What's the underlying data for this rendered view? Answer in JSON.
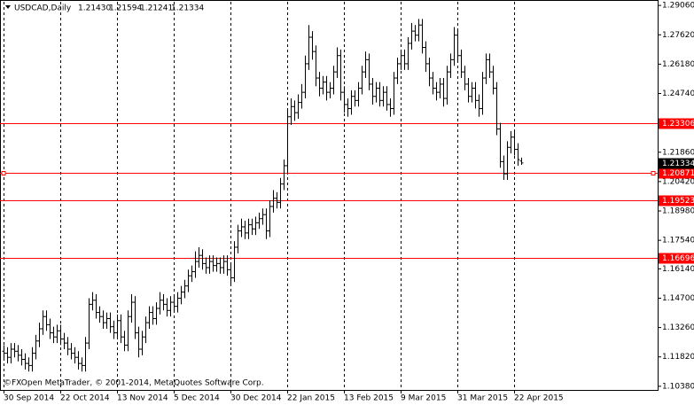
{
  "chart_data": {
    "type": "ohlc",
    "title": "USDCAD,Daily",
    "last_bar_labels": [
      "1.21430",
      "1.21594",
      "1.21241",
      "1.21334"
    ],
    "footer": "©FXOpen MetaTrader, © 2001-2014, MetaQuotes Software Corp.",
    "color": "#000000",
    "categories": [
      "30 Sep 2014",
      null,
      null,
      null,
      null,
      null,
      null,
      null,
      null,
      null,
      null,
      null,
      null,
      null,
      null,
      null,
      "22 Oct 2014",
      null,
      null,
      null,
      null,
      null,
      null,
      null,
      null,
      null,
      null,
      null,
      null,
      null,
      null,
      null,
      "13 Nov 2014",
      null,
      null,
      null,
      null,
      null,
      null,
      null,
      null,
      null,
      null,
      null,
      null,
      null,
      null,
      null,
      "5 Dec 2014",
      null,
      null,
      null,
      null,
      null,
      null,
      null,
      null,
      null,
      null,
      null,
      null,
      null,
      null,
      null,
      "30 Dec 2014",
      null,
      null,
      null,
      null,
      null,
      null,
      null,
      null,
      null,
      null,
      null,
      null,
      null,
      null,
      null,
      "22 Jan 2015",
      null,
      null,
      null,
      null,
      null,
      null,
      null,
      null,
      null,
      null,
      null,
      null,
      null,
      null,
      null,
      "13 Feb 2015",
      null,
      null,
      null,
      null,
      null,
      null,
      null,
      null,
      null,
      null,
      null,
      null,
      null,
      null,
      null,
      "9 Mar 2015",
      null,
      null,
      null,
      null,
      null,
      null,
      null,
      null,
      null,
      null,
      null,
      null,
      null,
      null,
      null,
      "31 Mar 2015",
      null,
      null,
      null,
      null,
      null,
      null,
      null,
      null,
      null,
      null,
      null,
      null,
      null,
      null,
      null,
      "22 Apr 2015",
      null,
      null
    ],
    "ohlc": [
      [
        1.121,
        1.124,
        1.117,
        1.12
      ],
      [
        1.12,
        1.123,
        1.115,
        1.118
      ],
      [
        1.118,
        1.125,
        1.115,
        1.122
      ],
      [
        1.122,
        1.125,
        1.118,
        1.121
      ],
      [
        1.121,
        1.124,
        1.116,
        1.119
      ],
      [
        1.119,
        1.122,
        1.114,
        1.117
      ],
      [
        1.117,
        1.12,
        1.112,
        1.115
      ],
      [
        1.115,
        1.118,
        1.111,
        1.114
      ],
      [
        1.114,
        1.123,
        1.111,
        1.12
      ],
      [
        1.12,
        1.129,
        1.117,
        1.126
      ],
      [
        1.126,
        1.135,
        1.123,
        1.132
      ],
      [
        1.132,
        1.141,
        1.129,
        1.138
      ],
      [
        1.138,
        1.141,
        1.131,
        1.134
      ],
      [
        1.134,
        1.137,
        1.127,
        1.13
      ],
      [
        1.13,
        1.133,
        1.125,
        1.128
      ],
      [
        1.128,
        1.134,
        1.125,
        1.131
      ],
      [
        1.131,
        1.134,
        1.124,
        1.127
      ],
      [
        1.127,
        1.13,
        1.122,
        1.125
      ],
      [
        1.125,
        1.128,
        1.119,
        1.122
      ],
      [
        1.122,
        1.125,
        1.117,
        1.12
      ],
      [
        1.12,
        1.123,
        1.115,
        1.118
      ],
      [
        1.118,
        1.121,
        1.112,
        1.115
      ],
      [
        1.115,
        1.118,
        1.111,
        1.114
      ],
      [
        1.114,
        1.128,
        1.111,
        1.125
      ],
      [
        1.125,
        1.147,
        1.122,
        1.144
      ],
      [
        1.144,
        1.15,
        1.141,
        1.146
      ],
      [
        1.146,
        1.149,
        1.137,
        1.14
      ],
      [
        1.14,
        1.143,
        1.135,
        1.138
      ],
      [
        1.138,
        1.141,
        1.132,
        1.135
      ],
      [
        1.135,
        1.14,
        1.132,
        1.137
      ],
      [
        1.137,
        1.14,
        1.13,
        1.133
      ],
      [
        1.133,
        1.136,
        1.127,
        1.13
      ],
      [
        1.13,
        1.139,
        1.127,
        1.136
      ],
      [
        1.136,
        1.139,
        1.125,
        1.128
      ],
      [
        1.128,
        1.131,
        1.121,
        1.124
      ],
      [
        1.124,
        1.141,
        1.121,
        1.138
      ],
      [
        1.138,
        1.149,
        1.135,
        1.145
      ],
      [
        1.145,
        1.148,
        1.127,
        1.13
      ],
      [
        1.13,
        1.133,
        1.118,
        1.122
      ],
      [
        1.122,
        1.131,
        1.119,
        1.128
      ],
      [
        1.128,
        1.138,
        1.125,
        1.135
      ],
      [
        1.135,
        1.143,
        1.132,
        1.14
      ],
      [
        1.14,
        1.143,
        1.134,
        1.137
      ],
      [
        1.137,
        1.145,
        1.134,
        1.142
      ],
      [
        1.142,
        1.15,
        1.139,
        1.146
      ],
      [
        1.146,
        1.149,
        1.141,
        1.144
      ],
      [
        1.144,
        1.147,
        1.138,
        1.141
      ],
      [
        1.141,
        1.148,
        1.138,
        1.145
      ],
      [
        1.145,
        1.148,
        1.14,
        1.143
      ],
      [
        1.143,
        1.15,
        1.14,
        1.147
      ],
      [
        1.147,
        1.153,
        1.144,
        1.15
      ],
      [
        1.15,
        1.156,
        1.147,
        1.153
      ],
      [
        1.153,
        1.161,
        1.15,
        1.158
      ],
      [
        1.158,
        1.163,
        1.155,
        1.16
      ],
      [
        1.16,
        1.17,
        1.157,
        1.165
      ],
      [
        1.165,
        1.172,
        1.162,
        1.168
      ],
      [
        1.168,
        1.171,
        1.161,
        1.164
      ],
      [
        1.164,
        1.167,
        1.159,
        1.162
      ],
      [
        1.162,
        1.168,
        1.159,
        1.165
      ],
      [
        1.165,
        1.168,
        1.16,
        1.163
      ],
      [
        1.163,
        1.167,
        1.16,
        1.164
      ],
      [
        1.164,
        1.167,
        1.159,
        1.162
      ],
      [
        1.162,
        1.168,
        1.159,
        1.165
      ],
      [
        1.165,
        1.168,
        1.158,
        1.161
      ],
      [
        1.161,
        1.164,
        1.154,
        1.157
      ],
      [
        1.157,
        1.175,
        1.155,
        1.172
      ],
      [
        1.172,
        1.183,
        1.169,
        1.18
      ],
      [
        1.18,
        1.186,
        1.177,
        1.182
      ],
      [
        1.182,
        1.185,
        1.176,
        1.179
      ],
      [
        1.179,
        1.186,
        1.176,
        1.183
      ],
      [
        1.183,
        1.186,
        1.178,
        1.181
      ],
      [
        1.181,
        1.187,
        1.178,
        1.184
      ],
      [
        1.184,
        1.189,
        1.181,
        1.186
      ],
      [
        1.186,
        1.191,
        1.183,
        1.188
      ],
      [
        1.188,
        1.191,
        1.176,
        1.18
      ],
      [
        1.18,
        1.195,
        1.177,
        1.192
      ],
      [
        1.192,
        1.2,
        1.189,
        1.196
      ],
      [
        1.196,
        1.199,
        1.191,
        1.194
      ],
      [
        1.194,
        1.206,
        1.191,
        1.203
      ],
      [
        1.203,
        1.215,
        1.2,
        1.212
      ],
      [
        1.212,
        1.239,
        1.209,
        1.236
      ],
      [
        1.236,
        1.245,
        1.232,
        1.241
      ],
      [
        1.241,
        1.244,
        1.234,
        1.238
      ],
      [
        1.238,
        1.247,
        1.235,
        1.243
      ],
      [
        1.243,
        1.252,
        1.24,
        1.248
      ],
      [
        1.248,
        1.266,
        1.245,
        1.262
      ],
      [
        1.262,
        1.281,
        1.259,
        1.275
      ],
      [
        1.275,
        1.278,
        1.264,
        1.268
      ],
      [
        1.268,
        1.271,
        1.251,
        1.255
      ],
      [
        1.255,
        1.258,
        1.246,
        1.25
      ],
      [
        1.25,
        1.256,
        1.247,
        1.253
      ],
      [
        1.253,
        1.256,
        1.244,
        1.248
      ],
      [
        1.248,
        1.253,
        1.245,
        1.25
      ],
      [
        1.25,
        1.261,
        1.247,
        1.258
      ],
      [
        1.258,
        1.27,
        1.255,
        1.266
      ],
      [
        1.266,
        1.269,
        1.244,
        1.248
      ],
      [
        1.248,
        1.251,
        1.238,
        1.242
      ],
      [
        1.242,
        1.245,
        1.236,
        1.24
      ],
      [
        1.24,
        1.249,
        1.237,
        1.246
      ],
      [
        1.246,
        1.249,
        1.241,
        1.244
      ],
      [
        1.244,
        1.253,
        1.241,
        1.25
      ],
      [
        1.25,
        1.261,
        1.247,
        1.258
      ],
      [
        1.258,
        1.268,
        1.255,
        1.264
      ],
      [
        1.264,
        1.267,
        1.249,
        1.252
      ],
      [
        1.252,
        1.255,
        1.242,
        1.246
      ],
      [
        1.246,
        1.253,
        1.243,
        1.25
      ],
      [
        1.25,
        1.253,
        1.241,
        1.244
      ],
      [
        1.244,
        1.251,
        1.241,
        1.248
      ],
      [
        1.248,
        1.251,
        1.239,
        1.242
      ],
      [
        1.242,
        1.245,
        1.236,
        1.24
      ],
      [
        1.24,
        1.258,
        1.237,
        1.255
      ],
      [
        1.255,
        1.265,
        1.252,
        1.262
      ],
      [
        1.262,
        1.269,
        1.259,
        1.266
      ],
      [
        1.266,
        1.269,
        1.259,
        1.262
      ],
      [
        1.262,
        1.275,
        1.259,
        1.272
      ],
      [
        1.272,
        1.282,
        1.269,
        1.278
      ],
      [
        1.278,
        1.281,
        1.273,
        1.276
      ],
      [
        1.276,
        1.284,
        1.273,
        1.281
      ],
      [
        1.281,
        1.284,
        1.267,
        1.27
      ],
      [
        1.27,
        1.273,
        1.258,
        1.262
      ],
      [
        1.262,
        1.265,
        1.251,
        1.255
      ],
      [
        1.255,
        1.258,
        1.247,
        1.25
      ],
      [
        1.25,
        1.253,
        1.244,
        1.248
      ],
      [
        1.248,
        1.255,
        1.245,
        1.252
      ],
      [
        1.252,
        1.255,
        1.241,
        1.245
      ],
      [
        1.245,
        1.261,
        1.242,
        1.258
      ],
      [
        1.258,
        1.267,
        1.255,
        1.264
      ],
      [
        1.264,
        1.28,
        1.261,
        1.276
      ],
      [
        1.276,
        1.279,
        1.263,
        1.266
      ],
      [
        1.266,
        1.269,
        1.255,
        1.258
      ],
      [
        1.258,
        1.261,
        1.249,
        1.252
      ],
      [
        1.252,
        1.255,
        1.243,
        1.246
      ],
      [
        1.246,
        1.253,
        1.243,
        1.25
      ],
      [
        1.25,
        1.253,
        1.24,
        1.244
      ],
      [
        1.244,
        1.247,
        1.236,
        1.24
      ],
      [
        1.24,
        1.258,
        1.237,
        1.255
      ],
      [
        1.255,
        1.267,
        1.252,
        1.264
      ],
      [
        1.264,
        1.267,
        1.255,
        1.258
      ],
      [
        1.258,
        1.261,
        1.247,
        1.25
      ],
      [
        1.25,
        1.253,
        1.227,
        1.23
      ],
      [
        1.23,
        1.233,
        1.211,
        1.214
      ],
      [
        1.214,
        1.217,
        1.205,
        1.208
      ],
      [
        1.208,
        1.224,
        1.205,
        1.221
      ],
      [
        1.221,
        1.229,
        1.218,
        1.226
      ],
      [
        1.226,
        1.229,
        1.217,
        1.22
      ],
      [
        1.22,
        1.223,
        1.212,
        1.215
      ],
      [
        1.2143,
        1.21594,
        1.21241,
        1.21334
      ]
    ],
    "ylim": [
      1.102,
      1.2924
    ],
    "yticks": [
      {
        "value": 1.2906,
        "label": "1.29060"
      },
      {
        "value": 1.2762,
        "label": "1.27620"
      },
      {
        "value": 1.2618,
        "label": "1.26180"
      },
      {
        "value": 1.2474,
        "label": "1.24740"
      },
      {
        "value": 1.2186,
        "label": "1.21860"
      },
      {
        "value": 1.2042,
        "label": "1.20420"
      },
      {
        "value": 1.1898,
        "label": "1.18980"
      },
      {
        "value": 1.1754,
        "label": "1.17540"
      },
      {
        "value": 1.1614,
        "label": "1.16140"
      },
      {
        "value": 1.147,
        "label": "1.14700"
      },
      {
        "value": 1.1326,
        "label": "1.13260"
      },
      {
        "value": 1.1182,
        "label": "1.11820"
      },
      {
        "value": 1.1038,
        "label": "1.10380"
      }
    ],
    "hlines": [
      1.23306,
      1.20871,
      1.19523,
      1.16696
    ],
    "hline_color": "#ff0000",
    "selected_hline": 1,
    "grid": true
  }
}
